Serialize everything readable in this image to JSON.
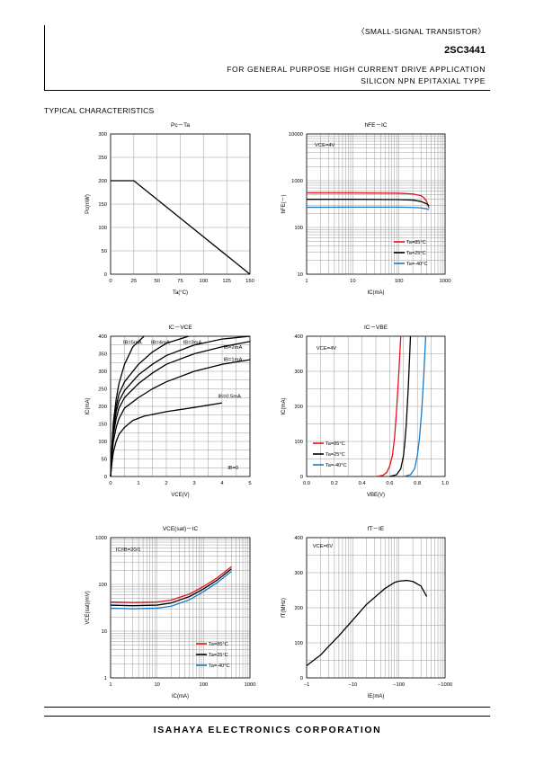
{
  "header": {
    "category": "〈SMALL-SIGNAL TRANSISTOR〉",
    "part": "2SC3441",
    "desc1": "FOR GENERAL PURPOSE HIGH CURRENT DRIVE APPLICATION",
    "desc2": "SILICON NPN EPITAXIAL TYPE"
  },
  "section_title": "TYPICAL CHARACTERISTICS",
  "footer": "ISAHAYA ELECTRONICS CORPORATION",
  "colors": {
    "red": "#e8101a",
    "black": "#000000",
    "blue": "#1a7bc4",
    "grid": "#9a9a9a"
  },
  "chart_data": [
    {
      "id": "pc-ta",
      "type": "line",
      "title": "Pc－Ta",
      "xlabel": "Ta(°C)",
      "ylabel": "Pc(mW)",
      "xscale": "linear",
      "yscale": "linear",
      "xlim": [
        0,
        150
      ],
      "ylim": [
        0,
        300
      ],
      "xticks": [
        0,
        25,
        50,
        75,
        100,
        125,
        150
      ],
      "xticklabels": [
        "0",
        "25",
        "50",
        "75",
        "100",
        "125",
        "150"
      ],
      "yticks": [
        0,
        50,
        100,
        150,
        200,
        250,
        300
      ],
      "yticklabels": [
        "0",
        "50",
        "100",
        "150",
        "200",
        "250",
        "300"
      ],
      "xgrid": [
        0,
        25,
        50,
        75,
        100,
        125,
        150
      ],
      "ygrid": [
        0,
        50,
        100,
        150,
        200,
        250,
        300
      ],
      "series": [
        {
          "color": "#000000",
          "x": [
            0,
            25,
            150
          ],
          "y": [
            200,
            200,
            0
          ]
        }
      ],
      "annotations": []
    },
    {
      "id": "hfe-ic",
      "type": "line",
      "title": "hFE－IC",
      "xlabel": "IC(mA)",
      "ylabel": "hFE(－)",
      "xscale": "log",
      "yscale": "log",
      "xlim": [
        1,
        1000
      ],
      "ylim": [
        10,
        10000
      ],
      "xticks": [
        1,
        10,
        100,
        1000
      ],
      "xticklabels": [
        "1",
        "10",
        "100",
        "1000"
      ],
      "yticks": [
        10,
        100,
        1000,
        10000
      ],
      "yticklabels": [
        "10",
        "100",
        "1000",
        "10000"
      ],
      "xgrid": [
        1,
        2,
        3,
        4,
        5,
        6,
        7,
        8,
        9,
        10,
        20,
        30,
        40,
        50,
        60,
        70,
        80,
        90,
        100,
        200,
        300,
        400,
        500,
        600,
        700,
        800,
        900,
        1000
      ],
      "ygrid": [
        10,
        20,
        30,
        40,
        50,
        60,
        70,
        80,
        90,
        100,
        200,
        300,
        400,
        500,
        600,
        700,
        800,
        900,
        1000,
        2000,
        3000,
        4000,
        5000,
        6000,
        7000,
        8000,
        9000,
        10000
      ],
      "series": [
        {
          "name": "Ta=85°C",
          "color": "#e8101a",
          "x": [
            1,
            10,
            100,
            200,
            300,
            350,
            400,
            450
          ],
          "y": [
            550,
            550,
            540,
            520,
            480,
            430,
            360,
            260
          ]
        },
        {
          "name": "Ta=25°C",
          "color": "#000000",
          "x": [
            1,
            10,
            100,
            200,
            300,
            400,
            450
          ],
          "y": [
            400,
            400,
            395,
            385,
            360,
            320,
            290
          ]
        },
        {
          "name": "Ta=-40°C",
          "color": "#1a7bc4",
          "x": [
            1,
            10,
            100,
            200,
            300,
            400,
            450
          ],
          "y": [
            270,
            272,
            272,
            268,
            262,
            250,
            240
          ]
        }
      ],
      "annotations": [
        {
          "text": "VCE=4V",
          "x": 1.5,
          "y": 5400
        }
      ],
      "legend": "bottom-right"
    },
    {
      "id": "ic-vce",
      "type": "line",
      "title": "IC－VCE",
      "xlabel": "VCE(V)",
      "ylabel": "IC(mA)",
      "xscale": "linear",
      "yscale": "linear",
      "xlim": [
        0,
        5
      ],
      "ylim": [
        0,
        400
      ],
      "xticks": [
        0,
        1,
        2,
        3,
        4,
        5
      ],
      "xticklabels": [
        "0",
        "1",
        "2",
        "3",
        "4",
        "5"
      ],
      "yticks": [
        0,
        50,
        100,
        150,
        200,
        250,
        300,
        350,
        400
      ],
      "yticklabels": [
        "0",
        "50",
        "100",
        "150",
        "200",
        "250",
        "300",
        "350",
        "400"
      ],
      "xgrid": [
        0,
        0.5,
        1,
        1.5,
        2,
        2.5,
        3,
        3.5,
        4,
        4.5,
        5
      ],
      "ygrid": [
        0,
        25,
        50,
        75,
        100,
        125,
        150,
        175,
        200,
        225,
        250,
        275,
        300,
        325,
        350,
        375,
        400
      ],
      "series": [
        {
          "name": "IB=0.5mA",
          "color": "#000000",
          "x": [
            0,
            0.05,
            0.1,
            0.2,
            0.3,
            0.5,
            0.8,
            1.2,
            2,
            3,
            4
          ],
          "y": [
            0,
            40,
            70,
            100,
            120,
            140,
            160,
            172,
            185,
            197,
            210
          ]
        },
        {
          "name": "IB=1mA",
          "color": "#000000",
          "x": [
            0,
            0.05,
            0.1,
            0.2,
            0.3,
            0.5,
            1,
            1.5,
            2,
            3,
            4,
            5
          ],
          "y": [
            0,
            60,
            100,
            140,
            165,
            195,
            225,
            250,
            270,
            300,
            320,
            333
          ]
        },
        {
          "name": "IB=2mA",
          "color": "#000000",
          "x": [
            0,
            0.05,
            0.1,
            0.2,
            0.3,
            0.5,
            1,
            1.5,
            2,
            3,
            4,
            5
          ],
          "y": [
            0,
            70,
            120,
            165,
            195,
            225,
            265,
            295,
            320,
            350,
            370,
            385
          ]
        },
        {
          "name": "IB=3mA",
          "color": "#000000",
          "x": [
            0,
            0.05,
            0.1,
            0.2,
            0.3,
            0.5,
            1,
            1.5,
            2,
            3,
            4,
            5
          ],
          "y": [
            0,
            80,
            135,
            185,
            215,
            245,
            290,
            320,
            345,
            375,
            392,
            400
          ]
        },
        {
          "name": "IB=4mA",
          "color": "#000000",
          "x": [
            0,
            0.05,
            0.1,
            0.2,
            0.3,
            0.5,
            1,
            1.5,
            2,
            2.8
          ],
          "y": [
            0,
            85,
            145,
            200,
            235,
            270,
            320,
            355,
            380,
            400
          ]
        },
        {
          "name": "IB=5mA",
          "color": "#000000",
          "x": [
            0,
            0.05,
            0.1,
            0.2,
            0.3,
            0.5,
            0.8,
            1.2
          ],
          "y": [
            0,
            90,
            155,
            220,
            265,
            320,
            370,
            400
          ]
        }
      ],
      "annotations": [
        {
          "text": "IB=5mA",
          "x": 0.45,
          "y": 378
        },
        {
          "text": "IB=4mA",
          "x": 1.45,
          "y": 378
        },
        {
          "text": "IB=3mA",
          "x": 2.6,
          "y": 378
        },
        {
          "text": "IB=2mA",
          "x": 4.05,
          "y": 364
        },
        {
          "text": "IB=1mA",
          "x": 4.05,
          "y": 330
        },
        {
          "text": "IB=0.5mA",
          "x": 3.85,
          "y": 225
        },
        {
          "text": "IB=0",
          "x": 4.2,
          "y": 20
        }
      ]
    },
    {
      "id": "ic-vbe",
      "type": "line",
      "title": "IC－VBE",
      "xlabel": "VBE(V)",
      "ylabel": "IC(mA)",
      "xscale": "linear",
      "yscale": "linear",
      "xlim": [
        0,
        1
      ],
      "ylim": [
        0,
        400
      ],
      "xticks": [
        0,
        0.2,
        0.4,
        0.6,
        0.8,
        1.0
      ],
      "xticklabels": [
        "0.0",
        "0.2",
        "0.4",
        "0.6",
        "0.8",
        "1.0"
      ],
      "yticks": [
        0,
        100,
        200,
        300,
        400
      ],
      "yticklabels": [
        "0",
        "100",
        "200",
        "300",
        "400"
      ],
      "xgrid": [
        0,
        0.1,
        0.2,
        0.3,
        0.4,
        0.5,
        0.6,
        0.7,
        0.8,
        0.9,
        1.0
      ],
      "ygrid": [
        0,
        50,
        100,
        150,
        200,
        250,
        300,
        350,
        400
      ],
      "series": [
        {
          "name": "Ta=85°C",
          "color": "#e8101a",
          "x": [
            0.5,
            0.55,
            0.58,
            0.6,
            0.62,
            0.635,
            0.65,
            0.665,
            0.68
          ],
          "y": [
            0,
            3,
            12,
            30,
            60,
            110,
            190,
            290,
            400
          ]
        },
        {
          "name": "Ta=25°C",
          "color": "#000000",
          "x": [
            0.6,
            0.65,
            0.68,
            0.7,
            0.71,
            0.72,
            0.735,
            0.75
          ],
          "y": [
            0,
            5,
            22,
            60,
            100,
            150,
            260,
            400
          ]
        },
        {
          "name": "Ta=-40°C",
          "color": "#1a7bc4",
          "x": [
            0.7,
            0.75,
            0.78,
            0.8,
            0.815,
            0.83,
            0.845,
            0.86
          ],
          "y": [
            0,
            5,
            22,
            60,
            110,
            180,
            280,
            400
          ]
        }
      ],
      "annotations": [
        {
          "text": "VCE=4V",
          "x": 0.07,
          "y": 362
        }
      ],
      "legend": "bottom-left"
    },
    {
      "id": "vcesat-ic",
      "type": "line",
      "title": "VCE(sat)－IC",
      "xlabel": "IC(mA)",
      "ylabel": "VCE(sat)(mV)",
      "xscale": "log",
      "yscale": "log",
      "xlim": [
        1,
        1000
      ],
      "ylim": [
        1,
        1000
      ],
      "xticks": [
        1,
        10,
        100,
        1000
      ],
      "xticklabels": [
        "1",
        "10",
        "100",
        "1000"
      ],
      "yticks": [
        1,
        10,
        100,
        1000
      ],
      "yticklabels": [
        "1",
        "10",
        "100",
        "1000"
      ],
      "xgrid": [
        1,
        2,
        3,
        4,
        5,
        6,
        7,
        8,
        9,
        10,
        20,
        30,
        40,
        50,
        60,
        70,
        80,
        90,
        100,
        200,
        300,
        400,
        500,
        600,
        700,
        800,
        900,
        1000
      ],
      "ygrid": [
        1,
        2,
        3,
        4,
        5,
        6,
        7,
        8,
        9,
        10,
        20,
        30,
        40,
        50,
        60,
        70,
        80,
        90,
        100,
        200,
        300,
        400,
        500,
        600,
        700,
        800,
        900,
        1000
      ],
      "series": [
        {
          "name": "Ta=85°C",
          "color": "#e8101a",
          "x": [
            1,
            3,
            10,
            20,
            50,
            100,
            200,
            400
          ],
          "y": [
            42,
            41,
            42,
            46,
            62,
            90,
            140,
            240
          ]
        },
        {
          "name": "Ta=25°C",
          "color": "#000000",
          "x": [
            1,
            3,
            10,
            20,
            50,
            100,
            200,
            400
          ],
          "y": [
            36,
            35,
            36,
            40,
            55,
            80,
            125,
            215
          ]
        },
        {
          "name": "Ta=-40°C",
          "color": "#1a7bc4",
          "x": [
            1,
            3,
            10,
            20,
            50,
            100,
            200,
            400
          ],
          "y": [
            31,
            30,
            31,
            34,
            47,
            70,
            110,
            190
          ]
        }
      ],
      "annotations": [
        {
          "text": "IC/IB=20/1",
          "x": 1.3,
          "y": 520
        }
      ],
      "legend": "bottom-right"
    },
    {
      "id": "ft-ie",
      "type": "line",
      "title": "fT－IE",
      "xlabel": "IE(mA)",
      "ylabel": "fT(MHz)",
      "xscale": "log",
      "yscale": "linear",
      "xlim": [
        1,
        1000
      ],
      "ylim": [
        0,
        400
      ],
      "xticks": [
        1,
        10,
        100,
        1000
      ],
      "xticklabels": [
        "−1",
        "−10",
        "−100",
        "−1000"
      ],
      "yticks": [
        0,
        100,
        200,
        300,
        400
      ],
      "yticklabels": [
        "0",
        "100",
        "200",
        "300",
        "400"
      ],
      "xgrid": [
        1,
        2,
        3,
        4,
        5,
        6,
        7,
        8,
        9,
        10,
        20,
        30,
        40,
        50,
        60,
        70,
        80,
        90,
        100,
        200,
        300,
        400,
        500,
        600,
        700,
        800,
        900,
        1000
      ],
      "ygrid": [
        0,
        50,
        100,
        150,
        200,
        250,
        300,
        350,
        400
      ],
      "series": [
        {
          "color": "#000000",
          "x": [
            1,
            2,
            3,
            5,
            10,
            20,
            50,
            80,
            100,
            150,
            200,
            300,
            400
          ],
          "y": [
            35,
            65,
            90,
            120,
            165,
            210,
            255,
            272,
            276,
            278,
            275,
            262,
            232
          ]
        }
      ],
      "annotations": [
        {
          "text": "VCE=6V",
          "x": 1.35,
          "y": 372
        }
      ]
    }
  ]
}
